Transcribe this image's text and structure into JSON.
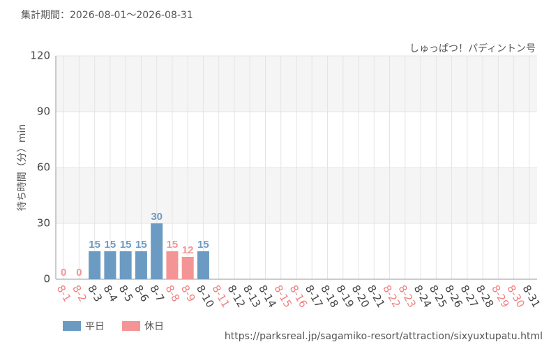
{
  "chart_data": {
    "type": "bar",
    "title": "集計期間：2026-08-01～2026-08-31",
    "subtitle": "しゅっぱつ！パディントン号",
    "y_label": "待ち時間（分）min",
    "source": "https://parksreal.jp/sagamiko-resort/attraction/sixyuxtupatu.html",
    "categories": [
      "8-1",
      "8-2",
      "8-3",
      "8-4",
      "8-5",
      "8-6",
      "8-7",
      "8-8",
      "8-9",
      "8-10",
      "8-11",
      "8-12",
      "8-13",
      "8-14",
      "8-15",
      "8-16",
      "8-17",
      "8-18",
      "8-19",
      "8-20",
      "8-21",
      "8-22",
      "8-23",
      "8-24",
      "8-25",
      "8-26",
      "8-27",
      "8-28",
      "8-29",
      "8-30",
      "8-31"
    ],
    "category_label_colors": [
      "#f08080",
      "#f08080",
      "#444",
      "#444",
      "#444",
      "#444",
      "#444",
      "#f08080",
      "#f08080",
      "#444",
      "#f08080",
      "#444",
      "#444",
      "#444",
      "#f08080",
      "#f08080",
      "#444",
      "#444",
      "#444",
      "#444",
      "#444",
      "#f08080",
      "#f08080",
      "#444",
      "#444",
      "#444",
      "#444",
      "#444",
      "#f08080",
      "#f08080",
      "#444"
    ],
    "series": [
      {
        "name": "平日",
        "color": "#6b9bc3",
        "values": [
          null,
          null,
          15,
          15,
          15,
          15,
          30,
          null,
          null,
          15,
          null,
          null,
          null,
          null,
          null,
          null,
          null,
          null,
          null,
          null,
          null,
          null,
          null,
          null,
          null,
          null,
          null,
          null,
          null,
          null,
          null
        ]
      },
      {
        "name": "休日",
        "color": "#f59494",
        "values": [
          0,
          0,
          null,
          null,
          null,
          null,
          null,
          15,
          12,
          null,
          null,
          null,
          null,
          null,
          null,
          null,
          null,
          null,
          null,
          null,
          null,
          null,
          null,
          null,
          null,
          null,
          null,
          null,
          null,
          null,
          null
        ]
      }
    ],
    "ylim": [
      0,
      120
    ],
    "yticks": [
      0,
      30,
      60,
      90,
      120
    ],
    "grid": true
  }
}
